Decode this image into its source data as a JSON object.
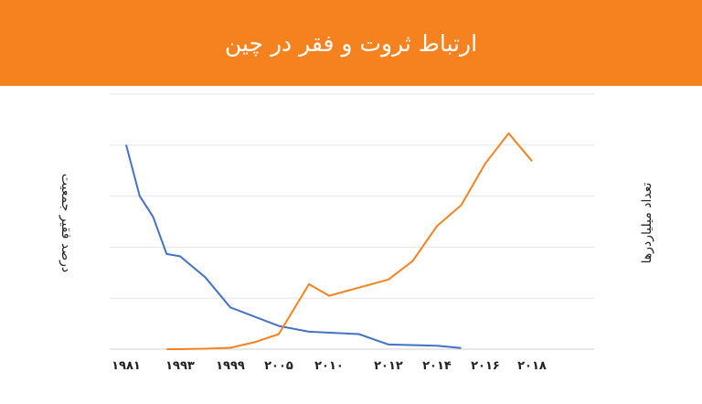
{
  "header": {
    "title": "ارتباط ثروت و فقر در چین",
    "background": "#f5821f"
  },
  "chart_data": {
    "type": "line",
    "title": "ارتباط ثروت و فقر در چین",
    "ylabel_left": "درصد فقیر جمعیت",
    "ylabel_right": "تعداد میلیاردرها",
    "x_ticks": [
      "۱۹۸۱",
      "۱۹۹۳",
      "۱۹۹۹",
      "۲۰۰۵",
      "۲۰۱۰",
      "۲۰۱۲",
      "۲۰۱۴",
      "۲۰۱۶",
      "۲۰۱۸"
    ],
    "grid": true,
    "y_axis_ticks_shown": false,
    "series": [
      {
        "color": "#4472c4",
        "values": [
          [
            1981,
            88
          ],
          [
            1984,
            66
          ],
          [
            1987,
            57
          ],
          [
            1990,
            41
          ],
          [
            1993,
            40
          ],
          [
            1996,
            31
          ],
          [
            1999,
            18
          ],
          [
            2002,
            14
          ],
          [
            2005,
            10
          ],
          [
            2008,
            7.5
          ],
          [
            2011,
            6.5
          ],
          [
            2012,
            2
          ],
          [
            2014,
            1.5
          ],
          [
            2015,
            0.5
          ]
        ]
      },
      {
        "color": "#f5821f",
        "values": [
          [
            1990,
            0
          ],
          [
            1993,
            0
          ],
          [
            1996,
            0.2
          ],
          [
            1999,
            0.6
          ],
          [
            2002,
            3
          ],
          [
            2005,
            6.5
          ],
          [
            2008,
            28
          ],
          [
            2010,
            23
          ],
          [
            2012,
            30
          ],
          [
            2013,
            38
          ],
          [
            2014,
            53
          ],
          [
            2015,
            62
          ],
          [
            2016,
            80
          ],
          [
            2017,
            93
          ],
          [
            2018,
            81
          ]
        ]
      }
    ]
  }
}
